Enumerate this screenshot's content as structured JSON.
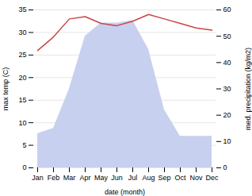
{
  "chart_data": {
    "type": "line",
    "categories": [
      "Jan",
      "Feb",
      "Mar",
      "Apr",
      "May",
      "Jun",
      "Jul",
      "Aug",
      "Sep",
      "Oct",
      "Nov",
      "Dec"
    ],
    "series": [
      {
        "type": "area",
        "axis": "y2",
        "color": "#c8d0f0",
        "values": [
          13,
          15,
          30,
          50,
          55,
          55,
          56,
          45,
          22,
          12,
          12,
          12
        ]
      },
      {
        "type": "line",
        "color": "#cc4444",
        "values": [
          26,
          29,
          33,
          33.5,
          32,
          31.5,
          32.5,
          34,
          33,
          32,
          31,
          30.5
        ]
      }
    ],
    "xlabel": "date (month)",
    "ylabel": "max temp (C)",
    "y2label": "med. precipitation (kg/m2)",
    "ylim": [
      0,
      35
    ],
    "yticks": [
      0,
      5,
      10,
      15,
      20,
      25,
      30,
      35
    ],
    "y2lim": [
      0,
      60
    ],
    "y2ticks": [
      0,
      10,
      20,
      30,
      40,
      50,
      60
    ],
    "grid": true
  }
}
